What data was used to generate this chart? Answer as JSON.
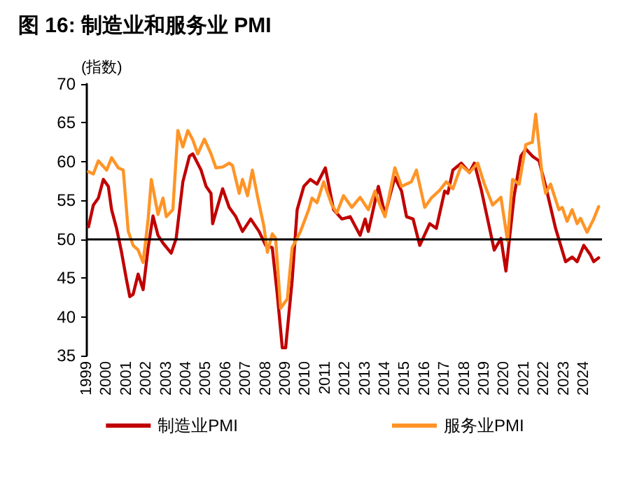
{
  "chart_data": {
    "type": "line",
    "title": "图 16: 制造业和服务业 PMI",
    "ylabel": "(指数)",
    "xlim": [
      "1999-01",
      "2024-12"
    ],
    "xticks": [
      "1999",
      "2000",
      "2001",
      "2002",
      "2003",
      "2004",
      "2005",
      "2006",
      "2007",
      "2008",
      "2009",
      "2010",
      "2011",
      "2012",
      "2013",
      "2014",
      "2015",
      "2016",
      "2017",
      "2018",
      "2019",
      "2020",
      "2021",
      "2022",
      "2023",
      "2024"
    ],
    "ylim": [
      35,
      70
    ],
    "yticks": [
      35,
      40,
      45,
      50,
      55,
      60,
      65,
      70
    ],
    "grid": false,
    "legend": "bottom",
    "marker": "none",
    "line_style": "solid",
    "ref_lines": [
      {
        "axis": "y",
        "value": 50,
        "color": "#000000"
      }
    ],
    "series": [
      {
        "name": "制造业PMI",
        "color": "#c00000",
        "x": [
          "1999-02",
          "1999-05",
          "1999-08",
          "1999-11",
          "2000-02",
          "2000-04",
          "2000-07",
          "2000-10",
          "2001-01",
          "2001-03",
          "2001-05",
          "2001-08",
          "2001-11",
          "2002-02",
          "2002-05",
          "2002-08",
          "2002-11",
          "2003-04",
          "2003-07",
          "2003-11",
          "2004-03",
          "2004-05",
          "2004-10",
          "2005-01",
          "2005-04",
          "2005-05",
          "2005-11",
          "2006-03",
          "2006-07",
          "2006-11",
          "2007-04",
          "2007-09",
          "2008-01",
          "2008-05",
          "2008-08",
          "2008-11",
          "2009-01",
          "2009-05",
          "2009-08",
          "2009-12",
          "2010-04",
          "2010-08",
          "2011-01",
          "2011-06",
          "2011-11",
          "2012-04",
          "2012-10",
          "2013-01",
          "2013-03",
          "2013-09",
          "2014-01",
          "2014-07",
          "2014-11",
          "2015-02",
          "2015-06",
          "2015-10",
          "2016-04",
          "2016-08",
          "2017-01",
          "2017-03",
          "2017-06",
          "2017-11",
          "2018-04",
          "2018-07",
          "2018-11",
          "2019-03",
          "2019-07",
          "2019-11",
          "2020-02",
          "2020-07",
          "2020-11",
          "2021-02",
          "2021-06",
          "2021-10",
          "2022-02",
          "2022-08",
          "2023-02",
          "2023-06",
          "2023-09",
          "2024-01",
          "2024-05",
          "2024-07",
          "2024-10"
        ],
        "values": [
          51.6,
          54.4,
          55.3,
          57.7,
          56.8,
          53.8,
          51.4,
          48.3,
          44.7,
          42.6,
          42.9,
          45.5,
          43.5,
          48.9,
          53.0,
          50.5,
          49.5,
          48.2,
          50.1,
          57.4,
          60.7,
          61.0,
          58.9,
          56.8,
          55.9,
          52.0,
          56.5,
          54.1,
          52.9,
          51.0,
          52.6,
          51.0,
          49.2,
          48.9,
          42.9,
          36.0,
          36.0,
          44.7,
          53.8,
          56.8,
          57.7,
          57.1,
          59.2,
          53.8,
          52.6,
          52.9,
          50.5,
          52.6,
          51.0,
          56.8,
          53.2,
          58.0,
          56.2,
          52.9,
          52.6,
          49.2,
          52.0,
          51.4,
          56.2,
          55.9,
          58.9,
          59.8,
          58.6,
          59.8,
          56.5,
          52.6,
          48.6,
          50.1,
          45.9,
          55.6,
          60.7,
          61.6,
          60.7,
          60.1,
          56.8,
          51.4,
          47.1,
          47.7,
          47.1,
          49.2,
          48.0,
          47.1,
          47.6
        ]
      },
      {
        "name": "服务业PMI",
        "color": "#ff9426",
        "x": [
          "1999-02",
          "1999-05",
          "1999-08",
          "2000-01",
          "2000-04",
          "2000-08",
          "2000-11",
          "2001-02",
          "2001-05",
          "2001-08",
          "2001-11",
          "2002-02",
          "2002-04",
          "2002-08",
          "2002-11",
          "2003-01",
          "2003-05",
          "2003-08",
          "2003-11",
          "2004-02",
          "2004-05",
          "2004-08",
          "2004-12",
          "2005-04",
          "2005-07",
          "2005-11",
          "2006-03",
          "2006-05",
          "2006-09",
          "2006-11",
          "2007-02",
          "2007-05",
          "2007-08",
          "2007-12",
          "2008-02",
          "2008-05",
          "2008-07",
          "2008-10",
          "2009-02",
          "2009-05",
          "2009-10",
          "2010-03",
          "2010-05",
          "2010-08",
          "2010-12",
          "2011-05",
          "2011-08",
          "2011-12",
          "2012-05",
          "2012-10",
          "2013-03",
          "2013-07",
          "2013-10",
          "2014-01",
          "2014-07",
          "2014-11",
          "2015-05",
          "2015-08",
          "2016-01",
          "2016-05",
          "2016-10",
          "2017-02",
          "2017-06",
          "2017-11",
          "2018-04",
          "2018-09",
          "2019-01",
          "2019-06",
          "2019-11",
          "2020-03",
          "2020-06",
          "2020-10",
          "2021-02",
          "2021-06",
          "2021-08",
          "2021-12",
          "2022-02",
          "2022-05",
          "2022-10",
          "2022-12",
          "2023-03",
          "2023-06",
          "2023-09",
          "2023-11",
          "2024-03",
          "2024-07",
          "2024-10"
        ],
        "values": [
          58.7,
          58.4,
          60.1,
          58.9,
          60.5,
          59.2,
          58.9,
          51.0,
          49.2,
          48.6,
          47.0,
          52.6,
          57.7,
          53.2,
          55.3,
          52.9,
          53.8,
          64.0,
          61.9,
          64.0,
          62.8,
          61.0,
          62.9,
          61.0,
          59.2,
          59.3,
          59.8,
          59.5,
          55.9,
          57.7,
          55.6,
          58.9,
          55.6,
          51.6,
          48.3,
          50.7,
          50.1,
          41.1,
          42.3,
          48.9,
          51.0,
          53.8,
          55.3,
          54.7,
          57.4,
          54.4,
          53.4,
          55.6,
          54.1,
          55.4,
          53.8,
          56.2,
          54.4,
          52.9,
          59.2,
          56.8,
          57.4,
          58.9,
          54.1,
          55.3,
          56.3,
          57.4,
          56.5,
          59.5,
          58.6,
          59.8,
          57.1,
          54.4,
          55.4,
          49.8,
          57.7,
          57.1,
          62.2,
          62.5,
          66.1,
          58.0,
          55.9,
          57.1,
          53.8,
          54.1,
          52.3,
          53.8,
          52.0,
          52.7,
          50.9,
          52.6,
          54.2
        ]
      }
    ]
  }
}
